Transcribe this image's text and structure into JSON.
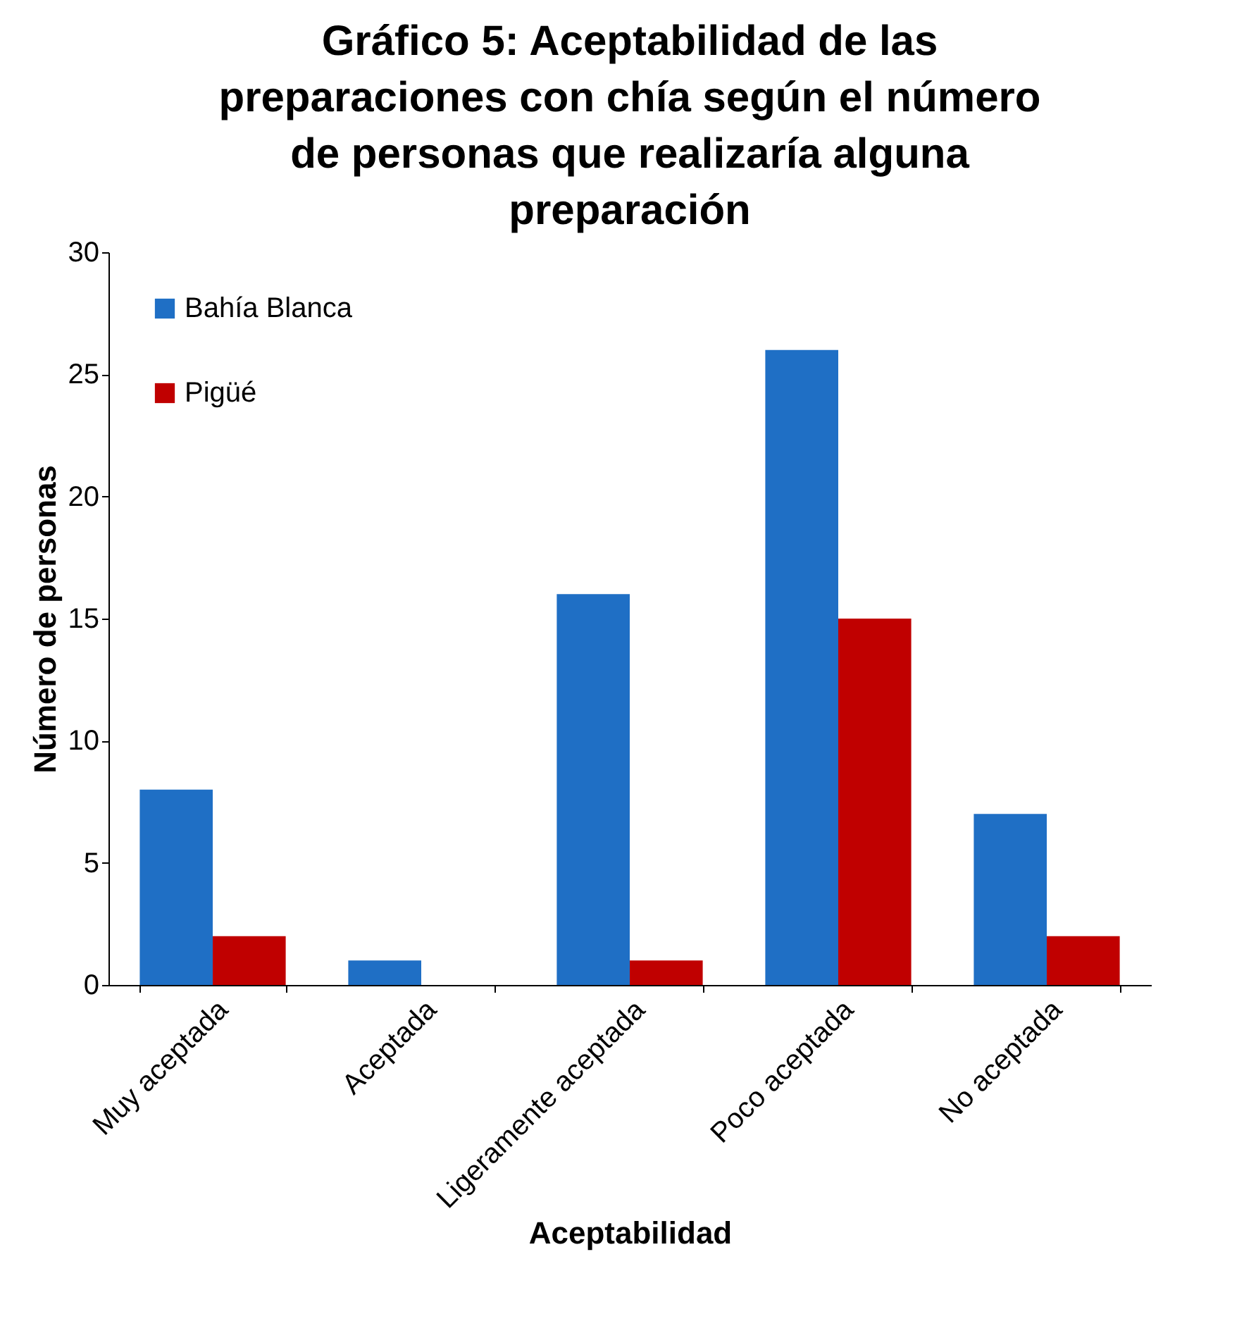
{
  "chart_data": {
    "type": "bar",
    "title": "Gráfico 5: Aceptabilidad de las preparaciones con chía según el número de personas que realizaría alguna preparación",
    "xlabel": "Aceptabilidad",
    "ylabel": "Número de personas",
    "categories": [
      "Muy aceptada",
      "Aceptada",
      "Ligeramente aceptada",
      "Poco aceptada",
      "No aceptada"
    ],
    "series": [
      {
        "name": "Bahía Blanca",
        "color": "#1f6fc5",
        "values": [
          8,
          1,
          16,
          26,
          7
        ]
      },
      {
        "name": "Pigüé",
        "color": "#c00000",
        "values": [
          2,
          0,
          1,
          15,
          2
        ]
      }
    ],
    "ylim": [
      0,
      30
    ],
    "yticks": [
      0,
      5,
      10,
      15,
      20,
      25,
      30
    ],
    "grid": false,
    "legend": "top left"
  }
}
